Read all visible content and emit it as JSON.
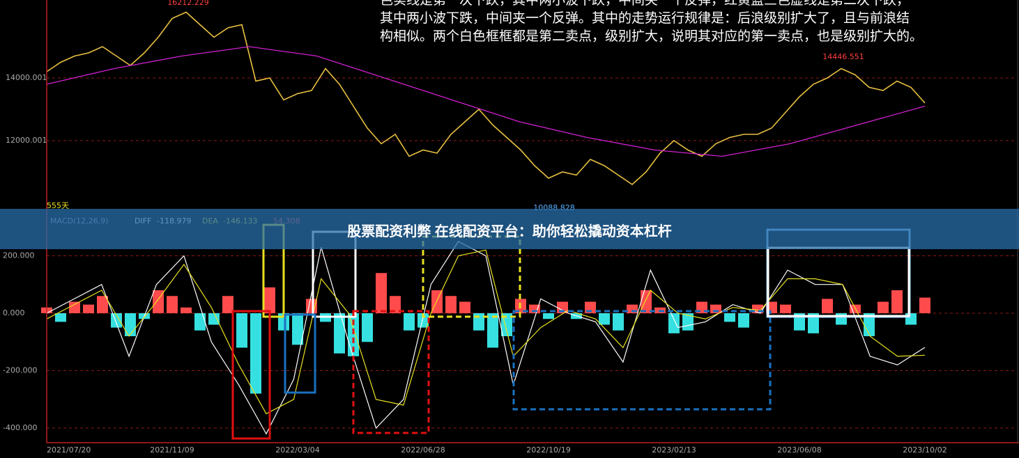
{
  "header": {
    "lines": [
      "色实线是第一次下跌，其中两小波下跌，中间夹一个反弹，红黄蓝三色虚线是第二次下跌，",
      "其中两小波下跌，中间夹一个反弹。其中的走势运行规律是：后浪级别扩大了，且与前浪结",
      "构相似。两个白色框框都是第二卖点，级别扩大，说明其对应的第一卖点，也是级别扩大的。"
    ]
  },
  "banner": {
    "title": "股票配资利弊 在线配资平台：助你轻松撬动资本杠杆"
  },
  "chart_data": [
    {
      "type": "line",
      "period_label": "555天",
      "annotations": [
        16212.229,
        14446.551,
        10088.828
      ],
      "ylim": [
        9822,
        16489
      ],
      "yticks": [
        12000.001,
        14000.001
      ],
      "grid": true,
      "series": [
        {
          "color": "#e8c040",
          "values": [
            14200,
            14500,
            14700,
            14800,
            15000,
            14700,
            14400,
            14800,
            15300,
            15900,
            16100,
            15700,
            15300,
            15600,
            15700,
            13900,
            14000,
            13300,
            13500,
            13600,
            14300,
            13800,
            13100,
            12400,
            11900,
            12200,
            11500,
            11700,
            11600,
            12200,
            12600,
            13000,
            12500,
            12100,
            11700,
            11200,
            10800,
            11000,
            10900,
            11400,
            11200,
            10900,
            10600,
            11000,
            11600,
            12000,
            11700,
            11500,
            11900,
            12100,
            12200,
            12200,
            12400,
            12900,
            13400,
            13800,
            14000,
            14300,
            14100,
            13700,
            13600,
            13900,
            13700,
            13200
          ]
        },
        {
          "color": "#d020d0",
          "values": [
            13800,
            14300,
            14700,
            15000,
            14700,
            14000,
            13300,
            12600,
            12100,
            11700,
            11500,
            11900,
            12500,
            13100
          ]
        }
      ]
    },
    {
      "type": "macd",
      "legend_title": "MACD(12,26,9)",
      "ylim": [
        -450.9,
        363.6
      ],
      "yticks": [
        {
          "value": -400,
          "label": "-400.000"
        },
        {
          "value": -200,
          "label": "-200.000"
        },
        {
          "value": 0,
          "label": "0.000"
        },
        {
          "value": 200,
          "label": "200.000"
        }
      ],
      "grid": true,
      "xtick_labels": [
        "2021/07/20",
        "2021/11/09",
        "2022/03/04",
        "2022/06/28",
        "2022/10/19",
        "2023/02/13",
        "2023/06/08",
        "2023/10/02"
      ],
      "positive_color": "#ff4b4b",
      "negative_color": "#36e0e0",
      "histogram": [
        20,
        -30,
        40,
        30,
        60,
        -50,
        -80,
        -20,
        80,
        60,
        20,
        -60,
        -40,
        60,
        -120,
        -280,
        90,
        -60,
        -110,
        50,
        -30,
        -140,
        -150,
        -100,
        140,
        60,
        -60,
        -50,
        80,
        60,
        40,
        -60,
        -120,
        -80,
        50,
        30,
        -20,
        40,
        -20,
        40,
        -40,
        -60,
        30,
        80,
        20,
        -70,
        -60,
        40,
        30,
        -30,
        -50,
        30,
        40,
        30,
        -60,
        -70,
        50,
        -40,
        30,
        -80,
        40,
        80,
        -40,
        54.308
      ],
      "series": [
        {
          "name": "DIFF",
          "color": "#ffffff",
          "values": [
            0,
            50,
            100,
            -150,
            100,
            200,
            -100,
            -250,
            -420,
            -230,
            230,
            -100,
            -400,
            -300,
            100,
            250,
            200,
            -250,
            50,
            0,
            -30,
            -170,
            150,
            -50,
            -30,
            30,
            0,
            150,
            100,
            100,
            -150,
            -180,
            -118.979
          ]
        },
        {
          "name": "DEA",
          "color": "#e8e020",
          "values": [
            -20,
            30,
            80,
            -80,
            40,
            170,
            20,
            -180,
            -350,
            -300,
            120,
            0,
            -300,
            -320,
            0,
            200,
            220,
            -150,
            -50,
            10,
            -20,
            -120,
            80,
            0,
            -20,
            20,
            10,
            120,
            120,
            100,
            -80,
            -150,
            -146.133
          ]
        }
      ]
    }
  ]
}
